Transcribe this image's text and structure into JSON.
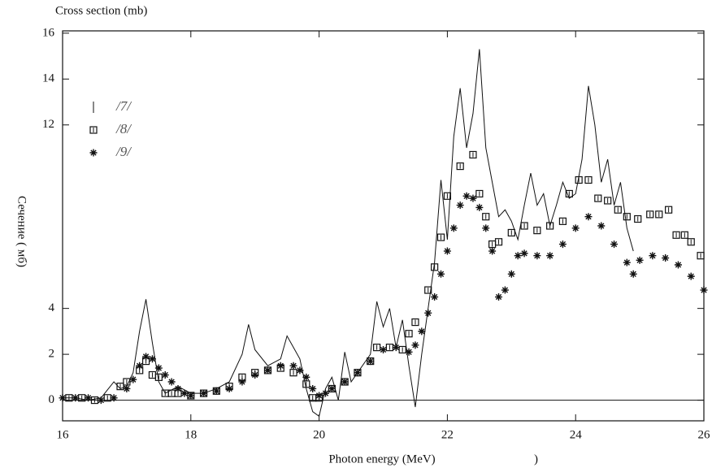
{
  "chart_data": {
    "type": "scatter-line",
    "title": "Cross section (mb)",
    "y_label": "Сечение ( мб)",
    "x_label": "Photon energy (MeV)",
    "annotation": ")",
    "xlim": [
      16,
      26
    ],
    "xticks": [
      16,
      18,
      20,
      22,
      24,
      26
    ],
    "ylim": [
      -0.9,
      16.1
    ],
    "yticks": [
      0,
      2,
      4,
      12,
      14,
      16
    ],
    "legend": "upper-left",
    "series": [
      {
        "name": "/7/",
        "marker": "line",
        "color": "#111111",
        "x": [
          16.0,
          16.2,
          16.4,
          16.6,
          16.8,
          16.9,
          17.0,
          17.1,
          17.2,
          17.3,
          17.4,
          17.5,
          17.6,
          17.8,
          18.0,
          18.2,
          18.4,
          18.6,
          18.8,
          18.9,
          19.0,
          19.2,
          19.4,
          19.5,
          19.6,
          19.7,
          19.8,
          19.9,
          20.0,
          20.1,
          20.2,
          20.3,
          20.4,
          20.5,
          20.6,
          20.8,
          20.9,
          21.0,
          21.1,
          21.2,
          21.3,
          21.4,
          21.5,
          21.6,
          21.7,
          21.8,
          21.9,
          22.0,
          22.1,
          22.2,
          22.3,
          22.4,
          22.5,
          22.6,
          22.7,
          22.8,
          22.9,
          23.0,
          23.1,
          23.2,
          23.3,
          23.4,
          23.5,
          23.6,
          23.7,
          23.8,
          23.9,
          24.0,
          24.1,
          24.2,
          24.3,
          24.4,
          24.5,
          24.6,
          24.7,
          24.8,
          24.9
        ],
        "values": [
          0.1,
          0.1,
          0.0,
          0.1,
          0.8,
          0.5,
          0.6,
          1.2,
          3.0,
          4.4,
          2.5,
          0.8,
          0.3,
          0.6,
          0.3,
          0.3,
          0.5,
          0.8,
          2.0,
          3.3,
          2.2,
          1.5,
          1.8,
          2.8,
          2.3,
          1.8,
          0.5,
          -0.5,
          -0.7,
          0.5,
          1.0,
          0.0,
          2.1,
          0.8,
          1.2,
          2.0,
          4.3,
          3.2,
          4.0,
          2.3,
          3.5,
          1.5,
          -0.3,
          2.0,
          4.0,
          6.0,
          9.6,
          7.0,
          11.5,
          13.6,
          11.0,
          12.5,
          15.3,
          11.0,
          9.5,
          8.0,
          8.3,
          7.8,
          7.0,
          8.5,
          9.9,
          8.5,
          9.0,
          7.6,
          8.5,
          9.5,
          8.8,
          9.0,
          10.5,
          13.7,
          12.0,
          9.5,
          10.5,
          8.5,
          9.5,
          7.5,
          6.5
        ]
      },
      {
        "name": "/8/",
        "marker": "square",
        "color": "#111111",
        "x": [
          16.1,
          16.3,
          16.5,
          16.7,
          16.9,
          17.0,
          17.2,
          17.3,
          17.4,
          17.5,
          17.6,
          17.7,
          17.8,
          18.0,
          18.2,
          18.4,
          18.6,
          18.8,
          19.0,
          19.2,
          19.4,
          19.6,
          19.8,
          19.9,
          20.0,
          20.2,
          20.4,
          20.6,
          20.8,
          20.9,
          21.1,
          21.3,
          21.4,
          21.5,
          21.7,
          21.8,
          21.9,
          22.0,
          22.2,
          22.4,
          22.5,
          22.6,
          22.7,
          22.8,
          23.0,
          23.2,
          23.4,
          23.6,
          23.8,
          23.9,
          24.05,
          24.2,
          24.35,
          24.5,
          24.66,
          24.8,
          24.97,
          25.16,
          25.3,
          25.45,
          25.57,
          25.7,
          25.8,
          25.95
        ],
        "values": [
          0.1,
          0.1,
          0.0,
          0.1,
          0.6,
          0.8,
          1.3,
          1.7,
          1.1,
          1.0,
          0.3,
          0.3,
          0.3,
          0.2,
          0.3,
          0.4,
          0.6,
          1.0,
          1.2,
          1.3,
          1.4,
          1.2,
          0.7,
          0.1,
          0.1,
          0.5,
          0.8,
          1.2,
          1.7,
          2.3,
          2.3,
          2.2,
          2.9,
          3.4,
          4.8,
          5.8,
          7.1,
          8.9,
          10.2,
          10.7,
          9.0,
          8.0,
          6.8,
          6.9,
          7.3,
          7.6,
          7.4,
          7.6,
          7.8,
          9.0,
          9.6,
          9.6,
          8.8,
          8.7,
          8.3,
          8.0,
          7.9,
          8.1,
          8.1,
          8.3,
          7.2,
          7.2,
          6.9,
          6.3
        ]
      },
      {
        "name": "/9/",
        "marker": "star",
        "color": "#111111",
        "x": [
          16.0,
          16.2,
          16.4,
          16.6,
          16.8,
          17.0,
          17.1,
          17.2,
          17.3,
          17.4,
          17.5,
          17.6,
          17.7,
          17.8,
          17.9,
          18.0,
          18.2,
          18.4,
          18.6,
          18.8,
          19.0,
          19.2,
          19.4,
          19.6,
          19.7,
          19.8,
          19.9,
          20.0,
          20.1,
          20.2,
          20.4,
          20.6,
          20.8,
          21.0,
          21.2,
          21.4,
          21.5,
          21.6,
          21.7,
          21.8,
          21.9,
          22.0,
          22.1,
          22.2,
          22.3,
          22.4,
          22.5,
          22.6,
          22.7,
          22.8,
          22.9,
          23.0,
          23.1,
          23.2,
          23.4,
          23.6,
          23.8,
          24.0,
          24.2,
          24.4,
          24.6,
          24.8,
          24.9,
          25.0,
          25.2,
          25.4,
          25.6,
          25.8,
          26.0
        ],
        "values": [
          0.1,
          0.1,
          0.1,
          0.0,
          0.1,
          0.5,
          0.9,
          1.5,
          1.9,
          1.8,
          1.4,
          1.1,
          0.8,
          0.5,
          0.3,
          0.2,
          0.3,
          0.4,
          0.5,
          0.8,
          1.1,
          1.3,
          1.5,
          1.5,
          1.3,
          1.0,
          0.5,
          0.2,
          0.3,
          0.5,
          0.8,
          1.2,
          1.7,
          2.2,
          2.3,
          2.1,
          2.4,
          3.0,
          3.8,
          4.5,
          5.5,
          6.5,
          7.5,
          8.5,
          8.9,
          8.8,
          8.4,
          7.5,
          6.5,
          4.5,
          4.8,
          5.5,
          6.3,
          6.4,
          6.3,
          6.3,
          6.8,
          7.5,
          8.0,
          7.6,
          6.8,
          6.0,
          5.5,
          6.1,
          6.3,
          6.2,
          5.9,
          5.4,
          4.8
        ]
      }
    ]
  }
}
